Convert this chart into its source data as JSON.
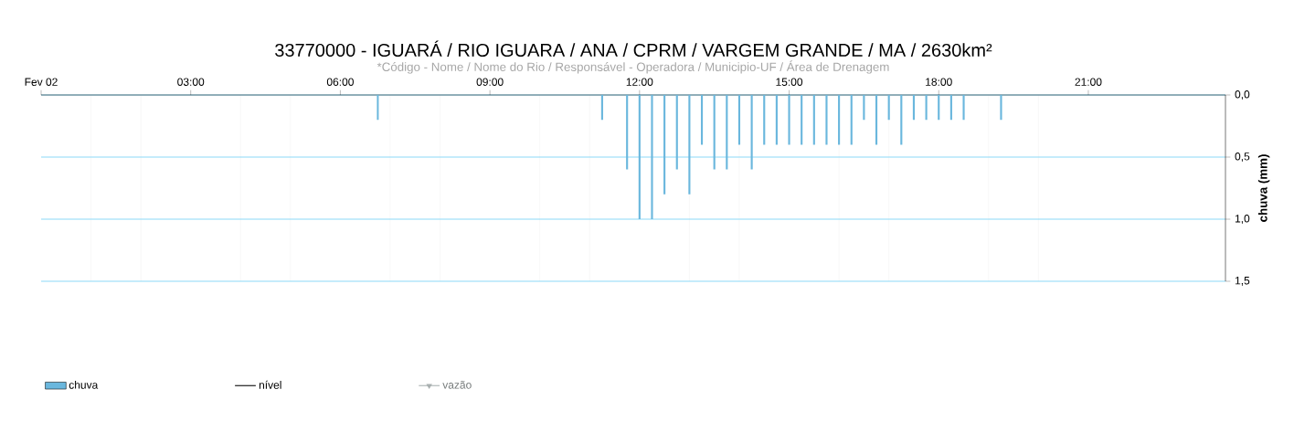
{
  "chart_data": {
    "type": "bar",
    "title": "33770000 - IGUARÁ / RIO IGUARA / ANA / CPRM / VARGEM GRANDE / MA / 2630km²",
    "subtitle": "*Código - Nome / Nome do Rio / Responsável - Operadora / Municipio-UF / Área de Drenagem",
    "ylabel": "chuva (mm)",
    "series": [
      {
        "name": "chuva",
        "color": "#6ab7dd",
        "x": [
          6.75,
          11.25,
          11.75,
          12.0,
          12.25,
          12.5,
          12.75,
          13.0,
          13.25,
          13.5,
          13.75,
          14.0,
          14.25,
          14.5,
          14.75,
          15.0,
          15.25,
          15.5,
          15.75,
          16.0,
          16.25,
          16.5,
          16.75,
          17.0,
          17.25,
          17.5,
          17.75,
          18.0,
          18.25,
          18.5,
          19.25
        ],
        "values": [
          0.2,
          0.2,
          0.6,
          1.0,
          1.0,
          0.8,
          0.6,
          0.8,
          0.4,
          0.6,
          0.6,
          0.4,
          0.6,
          0.4,
          0.4,
          0.4,
          0.4,
          0.4,
          0.4,
          0.4,
          0.4,
          0.2,
          0.4,
          0.2,
          0.4,
          0.2,
          0.2,
          0.2,
          0.2,
          0.2,
          0.2
        ]
      },
      {
        "name": "nível",
        "type": "line",
        "color": "#000000"
      },
      {
        "name": "vazão",
        "type": "line",
        "color": "#a9b0b0",
        "marker": "triangle"
      }
    ],
    "xlim": [
      0,
      23.75
    ],
    "xticks": [
      {
        "value": 0,
        "label": "Fev 02"
      },
      {
        "value": 3,
        "label": "03:00"
      },
      {
        "value": 6,
        "label": "06:00"
      },
      {
        "value": 9,
        "label": "09:00"
      },
      {
        "value": 12,
        "label": "12:00"
      },
      {
        "value": 15,
        "label": "15:00"
      },
      {
        "value": 18,
        "label": "18:00"
      },
      {
        "value": 21,
        "label": "21:00"
      }
    ],
    "ylim": [
      1.5,
      0
    ],
    "yticks": [
      {
        "value": 0,
        "label": "0,0"
      },
      {
        "value": 0.5,
        "label": "0,5"
      },
      {
        "value": 1,
        "label": "1,0"
      },
      {
        "value": 1.5,
        "label": "1,5"
      }
    ],
    "grid": true,
    "legend": "bottom left"
  }
}
